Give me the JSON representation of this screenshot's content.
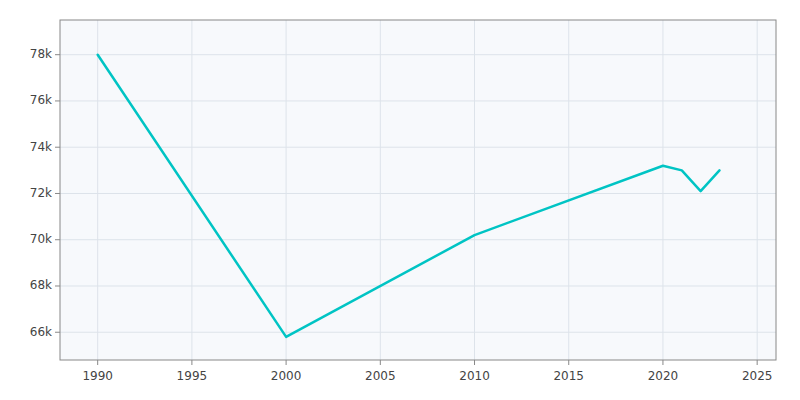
{
  "chart_data": {
    "type": "line",
    "x": [
      1990,
      2000,
      2010,
      2020,
      2021,
      2022,
      2023
    ],
    "values": [
      78000,
      65800,
      70200,
      73200,
      73000,
      72100,
      73000
    ],
    "color": "#00C4C4",
    "xlim": [
      1988,
      2026
    ],
    "ylim": [
      64800,
      79500
    ],
    "xticks": [
      1990,
      1995,
      2000,
      2005,
      2010,
      2015,
      2020,
      2025
    ],
    "yticks": [
      {
        "value": 66000,
        "label": "66k"
      },
      {
        "value": 68000,
        "label": "68k"
      },
      {
        "value": 70000,
        "label": "70k"
      },
      {
        "value": 72000,
        "label": "72k"
      },
      {
        "value": 74000,
        "label": "74k"
      },
      {
        "value": 76000,
        "label": "76k"
      },
      {
        "value": 78000,
        "label": "78k"
      }
    ],
    "grid": true
  }
}
